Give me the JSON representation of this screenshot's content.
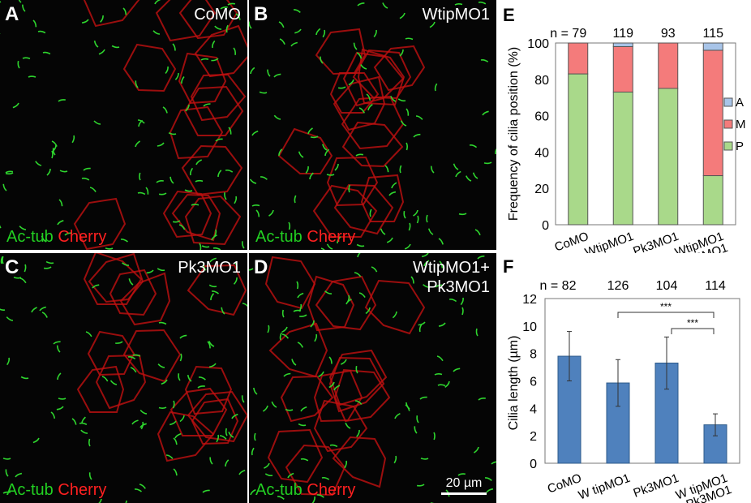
{
  "panels": [
    {
      "letter": "A",
      "condition": "CoMO",
      "stain_green": "Ac-tub",
      "stain_red": "Cherry"
    },
    {
      "letter": "B",
      "condition": "WtipMO1",
      "stain_green": "Ac-tub",
      "stain_red": "Cherry"
    },
    {
      "letter": "C",
      "condition": "Pk3MO1",
      "stain_green": "Ac-tub",
      "stain_red": "Cherry"
    },
    {
      "letter": "D",
      "condition": "WtipMO1+\nPk3MO1",
      "stain_green": "Ac-tub",
      "stain_red": "Cherry",
      "scale_bar": "20 µm"
    }
  ],
  "chart_data": [
    {
      "panel": "E",
      "type": "bar",
      "stacked": true,
      "categories": [
        "CoMO",
        "WtipMO1",
        "Pk3MO1",
        "WtipMO1\n+Pk3MO1"
      ],
      "n_prefix": "n = ",
      "n": [
        "79",
        "119",
        "93",
        "115"
      ],
      "series": [
        {
          "name": "P",
          "color": "#a9d98a",
          "values": [
            83,
            73,
            75,
            27
          ]
        },
        {
          "name": "M",
          "color": "#f47b7b",
          "values": [
            17,
            25,
            25,
            69
          ]
        },
        {
          "name": "A",
          "color": "#a8c4e8",
          "values": [
            0,
            2,
            0,
            4
          ]
        }
      ],
      "legend": [
        "A",
        "M",
        "P"
      ],
      "legend_position": "right",
      "ylabel": "Frequency of cilia position (%)",
      "ylim": [
        0,
        100
      ],
      "yticks": [
        0,
        20,
        40,
        60,
        80,
        100
      ]
    },
    {
      "panel": "F",
      "type": "bar",
      "categories": [
        "CoMO",
        "W tipMO1",
        "Pk3MO1",
        "W tipMO1\n+Pk3MO1"
      ],
      "n_prefix": "n = ",
      "n": [
        "82",
        "126",
        "104",
        "114"
      ],
      "values": [
        7.8,
        5.85,
        7.3,
        2.8
      ],
      "errors": [
        1.8,
        1.7,
        1.9,
        0.8
      ],
      "color": "#4f81bd",
      "ylabel": "Cilia length (µm)",
      "ylim": [
        0,
        12
      ],
      "yticks": [
        0,
        2,
        4,
        6,
        8,
        10,
        12
      ],
      "significance": [
        {
          "from": 1,
          "to": 3,
          "label": "***"
        },
        {
          "from": 2,
          "to": 3,
          "label": "***"
        }
      ]
    }
  ]
}
